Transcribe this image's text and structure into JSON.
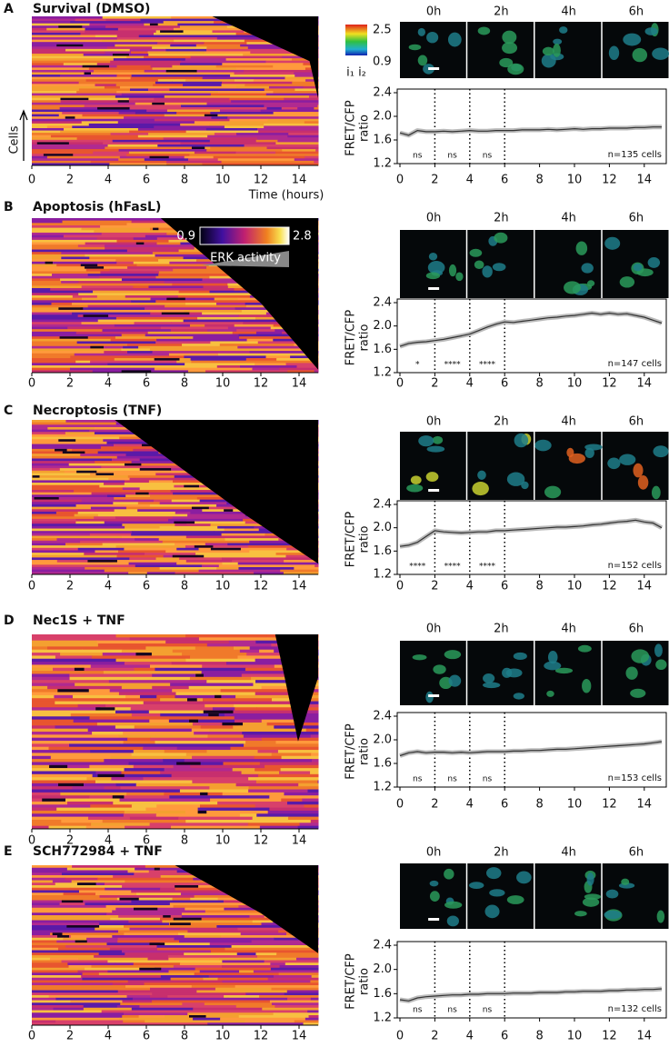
{
  "chart_data": [
    {
      "type": "heatmap",
      "panel": "A",
      "title": "Survival (DMSO)",
      "ylabel": "Cells",
      "xlabel": "Time (hours)",
      "xlim": [
        0,
        15
      ],
      "xticks": [
        0,
        2,
        4,
        6,
        8,
        10,
        12,
        14
      ],
      "colorbar_ticks": [
        0.9,
        2.5
      ],
      "colorbar_label": "i₁ i₂"
    },
    {
      "type": "line",
      "image_labels": [
        "0h",
        "2h",
        "4h",
        "6h"
      ],
      "ylabel": [
        "FRET/CFP",
        "ratio"
      ],
      "xlim": [
        0,
        15
      ],
      "xticks": [
        0,
        2,
        4,
        6,
        8,
        10,
        12,
        14
      ],
      "ylim": [
        1.2,
        2.4
      ],
      "yticks": [
        1.2,
        1.6,
        {
          "value": 2,
          "label": "2.0"
        },
        2.4
      ],
      "color": "#333333",
      "vlines": [
        2,
        4,
        6
      ],
      "annotations": [
        {
          "x": 1,
          "text": "ns"
        },
        {
          "x": 3,
          "text": "ns"
        },
        {
          "x": 5,
          "text": "ns"
        }
      ],
      "note": "n=135 cells",
      "x": [
        0,
        0.5,
        1,
        1.5,
        2,
        2.5,
        3,
        3.5,
        4,
        4.5,
        5,
        5.5,
        6,
        6.5,
        7,
        7.5,
        8,
        8.5,
        9,
        9.5,
        10,
        10.5,
        11,
        11.5,
        12,
        12.5,
        13,
        13.5,
        14,
        14.5,
        15
      ],
      "values": [
        1.72,
        1.68,
        1.76,
        1.74,
        1.74,
        1.75,
        1.74,
        1.75,
        1.76,
        1.75,
        1.75,
        1.76,
        1.76,
        1.76,
        1.77,
        1.77,
        1.77,
        1.78,
        1.77,
        1.78,
        1.79,
        1.78,
        1.79,
        1.79,
        1.8,
        1.8,
        1.8,
        1.81,
        1.81,
        1.82,
        1.82
      ]
    },
    {
      "type": "heatmap",
      "panel": "B",
      "title": "Apoptosis (hFasL)",
      "xlim": [
        0,
        15
      ],
      "xticks": [
        0,
        2,
        4,
        6,
        8,
        10,
        12,
        14
      ],
      "colorbar_ticks": [
        0.9,
        2.8
      ],
      "colorbar_label": "ERK activity"
    },
    {
      "type": "line",
      "image_labels": [
        "0h",
        "2h",
        "4h",
        "6h"
      ],
      "ylabel": [
        "FRET/CFP",
        "ratio"
      ],
      "xlim": [
        0,
        15
      ],
      "xticks": [
        0,
        2,
        4,
        6,
        8,
        10,
        12,
        14
      ],
      "ylim": [
        1.2,
        2.4
      ],
      "yticks": [
        1.2,
        1.6,
        {
          "value": 2,
          "label": "2.0"
        },
        2.4
      ],
      "color": "#333333",
      "vlines": [
        2,
        4,
        6
      ],
      "annotations": [
        {
          "x": 1,
          "text": "*"
        },
        {
          "x": 3,
          "text": "****"
        },
        {
          "x": 5,
          "text": "****"
        }
      ],
      "note": "n=147 cells",
      "x": [
        0,
        0.5,
        1,
        1.5,
        2,
        2.5,
        3,
        3.5,
        4,
        4.5,
        5,
        5.5,
        6,
        6.5,
        7,
        7.5,
        8,
        8.5,
        9,
        9.5,
        10,
        10.5,
        11,
        11.5,
        12,
        12.5,
        13,
        13.5,
        14,
        14.5,
        15
      ],
      "values": [
        1.65,
        1.7,
        1.72,
        1.73,
        1.75,
        1.77,
        1.8,
        1.83,
        1.86,
        1.92,
        1.98,
        2.03,
        2.07,
        2.06,
        2.08,
        2.1,
        2.12,
        2.14,
        2.15,
        2.17,
        2.18,
        2.2,
        2.22,
        2.2,
        2.22,
        2.2,
        2.21,
        2.18,
        2.15,
        2.1,
        2.05
      ]
    },
    {
      "type": "heatmap",
      "panel": "C",
      "title": "Necroptosis (TNF)",
      "xlim": [
        0,
        15
      ],
      "xticks": [
        0,
        2,
        4,
        6,
        8,
        10,
        12,
        14
      ]
    },
    {
      "type": "line",
      "image_labels": [
        "0h",
        "2h",
        "4h",
        "6h"
      ],
      "ylabel": [
        "FRET/CFP",
        "ratio"
      ],
      "xlim": [
        0,
        15
      ],
      "xticks": [
        0,
        2,
        4,
        6,
        8,
        10,
        12,
        14
      ],
      "ylim": [
        1.2,
        2.4
      ],
      "yticks": [
        1.2,
        1.6,
        {
          "value": 2,
          "label": "2.0"
        },
        2.4
      ],
      "color": "#333333",
      "vlines": [
        2,
        4,
        6
      ],
      "annotations": [
        {
          "x": 1,
          "text": "****"
        },
        {
          "x": 3,
          "text": "****"
        },
        {
          "x": 5,
          "text": "****"
        }
      ],
      "note": "n=152 cells",
      "x": [
        0,
        0.5,
        1,
        1.5,
        2,
        2.5,
        3,
        3.5,
        4,
        4.5,
        5,
        5.5,
        6,
        6.5,
        7,
        7.5,
        8,
        8.5,
        9,
        9.5,
        10,
        10.5,
        11,
        11.5,
        12,
        12.5,
        13,
        13.5,
        14,
        14.5,
        15
      ],
      "values": [
        1.68,
        1.7,
        1.75,
        1.85,
        1.95,
        1.93,
        1.92,
        1.91,
        1.92,
        1.93,
        1.93,
        1.95,
        1.95,
        1.96,
        1.97,
        1.98,
        1.99,
        2,
        2.01,
        2.01,
        2.02,
        2.03,
        2.05,
        2.06,
        2.08,
        2.1,
        2.11,
        2.13,
        2.1,
        2.08,
        2
      ]
    },
    {
      "type": "heatmap",
      "panel": "D",
      "title": "Nec1S + TNF",
      "xlim": [
        0,
        15
      ],
      "xticks": [
        0,
        2,
        4,
        6,
        8,
        10,
        12,
        14
      ]
    },
    {
      "type": "line",
      "image_labels": [
        "0h",
        "2h",
        "4h",
        "6h"
      ],
      "ylabel": [
        "FRET/CFP",
        "ratio"
      ],
      "xlim": [
        0,
        15
      ],
      "xticks": [
        0,
        2,
        4,
        6,
        8,
        10,
        12,
        14
      ],
      "ylim": [
        1.2,
        2.4
      ],
      "yticks": [
        1.2,
        1.6,
        {
          "value": 2,
          "label": "2.0"
        },
        2.4
      ],
      "color": "#333333",
      "vlines": [
        2,
        4,
        6
      ],
      "annotations": [
        {
          "x": 1,
          "text": "ns"
        },
        {
          "x": 3,
          "text": "ns"
        },
        {
          "x": 5,
          "text": "ns"
        }
      ],
      "note": "n=153 cells",
      "x": [
        0,
        0.5,
        1,
        1.5,
        2,
        2.5,
        3,
        3.5,
        4,
        4.5,
        5,
        5.5,
        6,
        6.5,
        7,
        7.5,
        8,
        8.5,
        9,
        9.5,
        10,
        10.5,
        11,
        11.5,
        12,
        12.5,
        13,
        13.5,
        14,
        14.5,
        15
      ],
      "values": [
        1.73,
        1.78,
        1.8,
        1.78,
        1.79,
        1.79,
        1.78,
        1.79,
        1.78,
        1.79,
        1.8,
        1.8,
        1.8,
        1.81,
        1.81,
        1.82,
        1.82,
        1.83,
        1.84,
        1.84,
        1.85,
        1.86,
        1.87,
        1.88,
        1.89,
        1.9,
        1.91,
        1.92,
        1.93,
        1.95,
        1.97
      ]
    },
    {
      "type": "heatmap",
      "panel": "E",
      "title": "SCH772984 + TNF",
      "xlim": [
        0,
        15
      ],
      "xticks": [
        0,
        2,
        4,
        6,
        8,
        10,
        12,
        14
      ]
    },
    {
      "type": "line",
      "image_labels": [
        "0h",
        "2h",
        "4h",
        "6h"
      ],
      "ylabel": [
        "FRET/CFP",
        "ratio"
      ],
      "xlim": [
        0,
        15
      ],
      "xticks": [
        0,
        2,
        4,
        6,
        8,
        10,
        12,
        14
      ],
      "ylim": [
        1.2,
        2.4
      ],
      "yticks": [
        1.2,
        1.6,
        {
          "value": 2,
          "label": "2.0"
        },
        2.4
      ],
      "color": "#333333",
      "vlines": [
        2,
        4,
        6
      ],
      "annotations": [
        {
          "x": 1,
          "text": "ns"
        },
        {
          "x": 3,
          "text": "ns"
        },
        {
          "x": 5,
          "text": "ns"
        }
      ],
      "note": "n=132 cells",
      "x": [
        0,
        0.5,
        1,
        1.5,
        2,
        2.5,
        3,
        3.5,
        4,
        4.5,
        5,
        5.5,
        6,
        6.5,
        7,
        7.5,
        8,
        8.5,
        9,
        9.5,
        10,
        10.5,
        11,
        11.5,
        12,
        12.5,
        13,
        13.5,
        14,
        14.5,
        15
      ],
      "values": [
        1.5,
        1.48,
        1.53,
        1.55,
        1.56,
        1.57,
        1.58,
        1.58,
        1.59,
        1.59,
        1.6,
        1.6,
        1.6,
        1.61,
        1.61,
        1.61,
        1.62,
        1.62,
        1.62,
        1.63,
        1.63,
        1.64,
        1.64,
        1.64,
        1.65,
        1.65,
        1.66,
        1.66,
        1.67,
        1.67,
        1.68
      ]
    }
  ]
}
